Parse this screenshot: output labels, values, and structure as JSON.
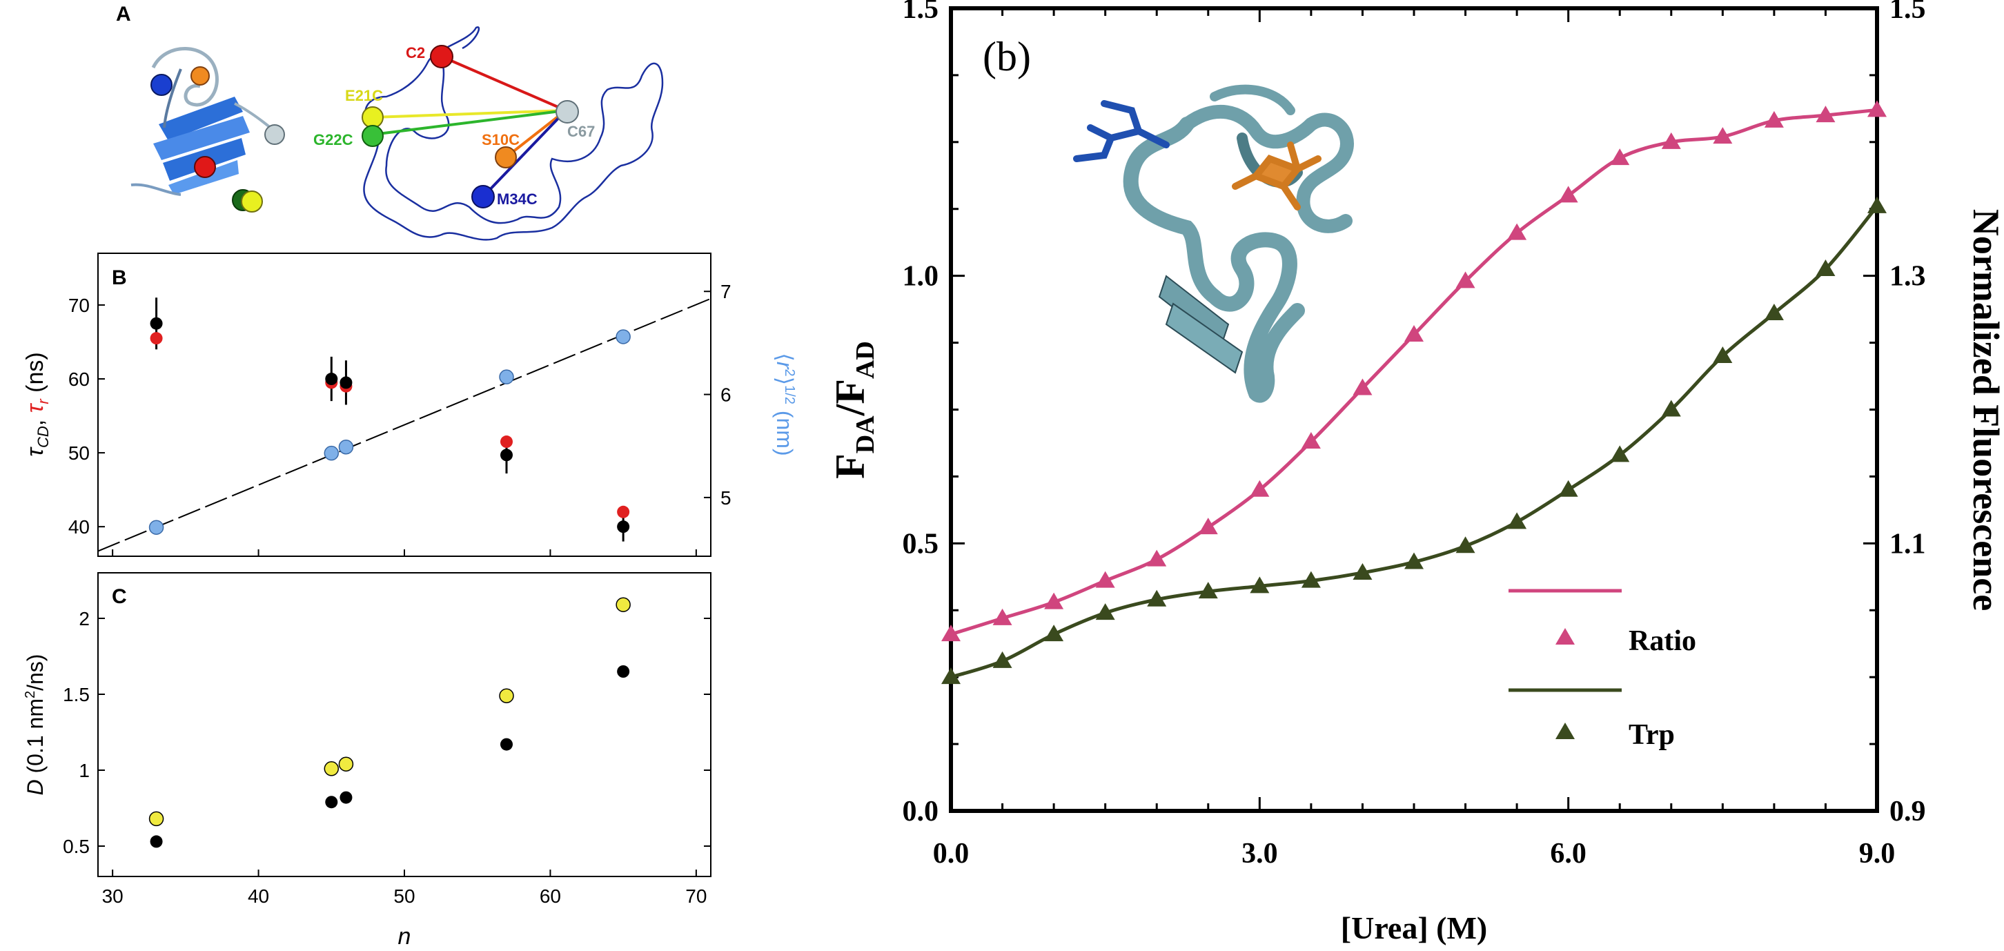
{
  "panel_a": {
    "letter": "A",
    "sites": [
      {
        "label": "C2",
        "color": "#d81818"
      },
      {
        "label": "E21C",
        "color": "#e8e82a"
      },
      {
        "label": "G22C",
        "color": "#2cb52c"
      },
      {
        "label": "S10C",
        "color": "#f07010"
      },
      {
        "label": "C67",
        "color": "#8a9aa0"
      },
      {
        "label": "M34C",
        "color": "#1a1aa0"
      }
    ]
  },
  "chart_data": [
    {
      "id": "B",
      "type": "scatter",
      "letter": "B",
      "x_range": [
        29,
        71
      ],
      "x_ticks": [
        30,
        40,
        50,
        60,
        70
      ],
      "y_left_range": [
        36,
        77
      ],
      "y_left_ticks": [
        40,
        50,
        60,
        70
      ],
      "y_right_range": [
        4.43,
        7.37
      ],
      "y_right_ticks": [
        5,
        6,
        7
      ],
      "ylabel_left": "τCD, τr (ns)",
      "ylabel_right": "⟨r2⟩1/2 (nm)",
      "series": [
        {
          "axis": "left",
          "color": "#000000",
          "points": [
            {
              "x": 33,
              "y": 67.5,
              "err": 3.5
            },
            {
              "x": 45,
              "y": 60,
              "err": 3
            },
            {
              "x": 46,
              "y": 59.5,
              "err": 3
            },
            {
              "x": 57,
              "y": 49.7,
              "err": 2.5
            },
            {
              "x": 65,
              "y": 40,
              "err": 2
            }
          ]
        },
        {
          "axis": "left",
          "color": "#e02020",
          "points": [
            {
              "x": 33,
              "y": 65.5
            },
            {
              "x": 45,
              "y": 59.5
            },
            {
              "x": 46,
              "y": 59
            },
            {
              "x": 57,
              "y": 51.5
            },
            {
              "x": 65,
              "y": 42
            }
          ]
        },
        {
          "axis": "right",
          "color": "#7fb0e8",
          "points": [
            {
              "x": 33,
              "y": 4.71
            },
            {
              "x": 45,
              "y": 5.43
            },
            {
              "x": 46,
              "y": 5.49
            },
            {
              "x": 57,
              "y": 6.17
            },
            {
              "x": 65,
              "y": 6.56
            }
          ]
        }
      ],
      "fit_line": {
        "axis": "right",
        "x": [
          29,
          71
        ],
        "y": [
          4.48,
          6.93
        ],
        "style": "dashed"
      }
    },
    {
      "id": "C",
      "type": "scatter",
      "letter": "C",
      "x_range": [
        29,
        71
      ],
      "x_ticks": [
        30,
        40,
        50,
        60,
        70
      ],
      "x_tick_labels": [
        "30",
        "40",
        "50",
        "60",
        "70"
      ],
      "xlabel": "n",
      "y_range": [
        0.3,
        2.3
      ],
      "y_ticks": [
        0.5,
        1,
        1.5,
        2
      ],
      "y_tick_labels": [
        "0.5",
        "1",
        "1.5",
        "2"
      ],
      "ylabel": "D (0.1 nm2/ns)",
      "series": [
        {
          "color": "#000000",
          "points": [
            {
              "x": 33,
              "y": 0.53
            },
            {
              "x": 45,
              "y": 0.79
            },
            {
              "x": 46,
              "y": 0.82
            },
            {
              "x": 57,
              "y": 1.17
            },
            {
              "x": 65,
              "y": 1.65
            }
          ]
        },
        {
          "color": "#f0ea40",
          "points": [
            {
              "x": 33,
              "y": 0.68
            },
            {
              "x": 45,
              "y": 1.01
            },
            {
              "x": 46,
              "y": 1.04
            },
            {
              "x": 57,
              "y": 1.49
            },
            {
              "x": 65,
              "y": 2.09
            }
          ]
        }
      ]
    },
    {
      "id": "b",
      "type": "line",
      "panel_label": "(b)",
      "x_range": [
        0,
        9
      ],
      "x_ticks": [
        0,
        3,
        6,
        9
      ],
      "x_tick_labels": [
        "0.0",
        "3.0",
        "6.0",
        "9.0"
      ],
      "xlabel": "[Urea] (M)",
      "y_left_range": [
        0,
        1.5
      ],
      "y_left_ticks": [
        0,
        0.5,
        1.0,
        1.5
      ],
      "y_left_tick_labels": [
        "0.0",
        "0.5",
        "1.0",
        "1.5"
      ],
      "y_right_range": [
        0.9,
        1.5
      ],
      "y_right_ticks": [
        0.9,
        1.1,
        1.3,
        1.5
      ],
      "y_right_tick_labels": [
        "0.9",
        "1.1",
        "1.3",
        "1.5"
      ],
      "ylabel_left": "FDA/FAD",
      "ylabel_right": "Normalized Fluorescence",
      "legend": [
        "Ratio",
        "Trp"
      ],
      "legend_position": "lower-right",
      "series": [
        {
          "name": "Ratio",
          "axis": "left",
          "color": "#d0457e",
          "x": [
            0,
            0.5,
            1,
            1.5,
            2,
            2.5,
            3,
            3.5,
            4,
            4.5,
            5,
            5.5,
            6,
            6.5,
            7,
            7.5,
            8,
            8.5,
            9
          ],
          "y": [
            0.33,
            0.36,
            0.39,
            0.43,
            0.47,
            0.53,
            0.6,
            0.69,
            0.79,
            0.89,
            0.99,
            1.08,
            1.15,
            1.22,
            1.25,
            1.26,
            1.29,
            1.3,
            1.31
          ]
        },
        {
          "name": "Trp",
          "axis": "right",
          "color": "#3a4a1e",
          "x": [
            0,
            0.5,
            1,
            1.5,
            2,
            2.5,
            3,
            3.5,
            4,
            4.5,
            5,
            5.5,
            6,
            6.5,
            7,
            7.5,
            8,
            8.5,
            9
          ],
          "y": [
            1.0,
            1.012,
            1.032,
            1.048,
            1.058,
            1.064,
            1.068,
            1.072,
            1.078,
            1.086,
            1.098,
            1.116,
            1.14,
            1.166,
            1.2,
            1.24,
            1.272,
            1.305,
            1.352
          ]
        }
      ]
    }
  ]
}
